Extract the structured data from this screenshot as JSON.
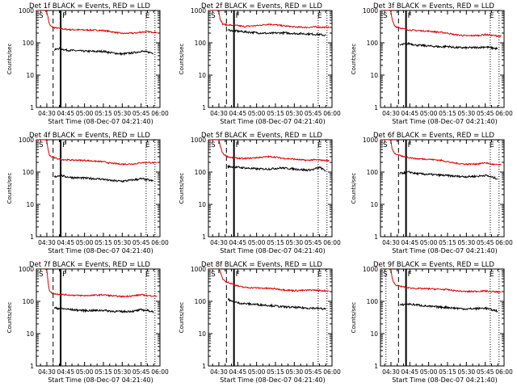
{
  "panel_title_suffix": "BLACK = Events, RED = LLD",
  "xlabel": "Start Time (08-Dec-07 04:21:40)",
  "ylabel": "Counts/sec",
  "x_ticks": [
    "04:30",
    "04:45",
    "05:00",
    "05:15",
    "05:30",
    "05:45",
    "06:00"
  ],
  "y_ticks": [
    "1",
    "10",
    "100",
    "1000"
  ],
  "marker_labels": {
    "start": "S",
    "flare": "F",
    "end": "E"
  },
  "colors": {
    "events": "#000000",
    "lld": "#dd0000"
  },
  "chart_data": [
    {
      "type": "line",
      "title": "Det 1f BLACK = Events, RED = LLD",
      "xlabel": "Start Time (08-Dec-07 04:21:40)",
      "ylabel": "Counts/sec",
      "yscale": "log",
      "ylim": [
        1,
        1000
      ],
      "xlim": [
        "04:21:40",
        "06:00"
      ],
      "markers": {
        "dashed": "04:35",
        "solid": "04:41",
        "dotted": [
          "05:49",
          "05:56"
        ]
      },
      "series": [
        {
          "name": "LLD",
          "color": "#dd0000",
          "x": [
            "04:21:40",
            "04:24",
            "04:27",
            "04:29",
            "04:30",
            "04:31",
            "04:32",
            "04:33",
            "04:35",
            "04:40",
            "04:45",
            "04:50",
            "05:00",
            "05:10",
            "05:15",
            "05:20",
            "05:30",
            "05:40",
            "05:45",
            "05:50",
            "05:58"
          ],
          "values": [
            1000,
            1000,
            1000,
            1000,
            900,
            600,
            380,
            330,
            300,
            280,
            260,
            255,
            250,
            245,
            240,
            225,
            195,
            200,
            215,
            220,
            210
          ]
        },
        {
          "name": "Events",
          "color": "#000000",
          "x": [
            "04:36",
            "04:40",
            "04:45",
            "04:50",
            "05:00",
            "05:10",
            "05:15",
            "05:20",
            "05:30",
            "05:40",
            "05:45",
            "05:50",
            "05:55"
          ],
          "values": [
            60,
            68,
            60,
            58,
            55,
            54,
            55,
            50,
            45,
            50,
            55,
            52,
            48
          ]
        }
      ]
    },
    {
      "type": "line",
      "title": "Det 2f BLACK = Events, RED = LLD",
      "xlabel": "Start Time (08-Dec-07 04:21:40)",
      "ylabel": "Counts/sec",
      "yscale": "log",
      "ylim": [
        1,
        1000
      ],
      "xlim": [
        "04:21:40",
        "06:00"
      ],
      "markers": {
        "dashed": "04:36",
        "solid": "04:42",
        "dotted": [
          "05:49",
          "05:56"
        ]
      },
      "series": [
        {
          "name": "LLD",
          "color": "#dd0000",
          "x": [
            "04:21:40",
            "04:24",
            "04:27",
            "04:29",
            "04:30",
            "04:31",
            "04:33",
            "04:36",
            "04:40",
            "04:45",
            "04:50",
            "05:00",
            "05:10",
            "05:15",
            "05:20",
            "05:30",
            "05:40",
            "05:45",
            "05:50",
            "05:58"
          ],
          "values": [
            1000,
            1000,
            1000,
            1000,
            900,
            550,
            380,
            360,
            350,
            340,
            320,
            340,
            380,
            360,
            340,
            310,
            300,
            310,
            305,
            300
          ]
        },
        {
          "name": "Events",
          "color": "#000000",
          "x": [
            "04:37",
            "04:40",
            "04:45",
            "04:50",
            "05:00",
            "05:10",
            "05:15",
            "05:20",
            "05:30",
            "05:40",
            "05:45",
            "05:50",
            "05:55"
          ],
          "values": [
            250,
            240,
            230,
            220,
            205,
            195,
            200,
            205,
            195,
            190,
            185,
            180,
            170
          ]
        }
      ]
    },
    {
      "type": "line",
      "title": "Det 3f BLACK = Events, RED = LLD",
      "xlabel": "Start Time (08-Dec-07 04:21:40)",
      "ylabel": "Counts/sec",
      "yscale": "log",
      "ylim": [
        1,
        1000
      ],
      "xlim": [
        "04:21:40",
        "06:00"
      ],
      "markers": {
        "dashed": "04:36",
        "solid": "04:42",
        "dotted": [
          "05:49",
          "05:56"
        ]
      },
      "series": [
        {
          "name": "LLD",
          "color": "#dd0000",
          "x": [
            "04:21:40",
            "04:25",
            "04:28",
            "04:30",
            "04:31",
            "04:33",
            "04:36",
            "04:40",
            "04:45",
            "04:50",
            "05:00",
            "05:10",
            "05:15",
            "05:20",
            "05:30",
            "05:40",
            "05:45",
            "05:50",
            "05:58"
          ],
          "values": [
            1000,
            1000,
            1000,
            950,
            500,
            330,
            300,
            270,
            250,
            240,
            230,
            210,
            200,
            180,
            165,
            170,
            180,
            170,
            160
          ]
        },
        {
          "name": "Events",
          "color": "#000000",
          "x": [
            "04:37",
            "04:40",
            "04:45",
            "04:50",
            "05:00",
            "05:10",
            "05:15",
            "05:20",
            "05:30",
            "05:40",
            "05:45",
            "05:50",
            "05:55"
          ],
          "values": [
            85,
            90,
            95,
            85,
            80,
            75,
            78,
            72,
            70,
            72,
            75,
            70,
            65
          ]
        }
      ]
    },
    {
      "type": "line",
      "title": "Det 4f BLACK = Events, RED = LLD",
      "xlabel": "Start Time (08-Dec-07 04:21:40)",
      "ylabel": "Counts/sec",
      "yscale": "log",
      "ylim": [
        1,
        1000
      ],
      "xlim": [
        "04:21:40",
        "06:00"
      ],
      "markers": {
        "dashed": "04:35",
        "solid": "04:41",
        "dotted": [
          "05:49",
          "05:56"
        ]
      },
      "series": [
        {
          "name": "LLD",
          "color": "#dd0000",
          "x": [
            "04:21:40",
            "04:24",
            "04:27",
            "04:29",
            "04:30",
            "04:31",
            "04:32",
            "04:34",
            "04:37",
            "04:40",
            "04:45",
            "04:50",
            "05:00",
            "05:10",
            "05:15",
            "05:20",
            "05:30",
            "05:40",
            "05:45",
            "05:50",
            "05:58"
          ],
          "values": [
            1000,
            1000,
            1000,
            1000,
            900,
            500,
            330,
            290,
            270,
            250,
            240,
            235,
            230,
            215,
            210,
            190,
            175,
            180,
            195,
            200,
            190
          ]
        },
        {
          "name": "Events",
          "color": "#000000",
          "x": [
            "04:36",
            "04:40",
            "04:45",
            "04:50",
            "05:00",
            "05:10",
            "05:15",
            "05:20",
            "05:30",
            "05:40",
            "05:45",
            "05:50",
            "05:55"
          ],
          "values": [
            70,
            80,
            72,
            68,
            65,
            62,
            60,
            55,
            52,
            58,
            62,
            58,
            52
          ]
        }
      ]
    },
    {
      "type": "line",
      "title": "Det 5f BLACK = Events, RED = LLD",
      "xlabel": "Start Time (08-Dec-07 04:21:40)",
      "ylabel": "Counts/sec",
      "yscale": "log",
      "ylim": [
        1,
        1000
      ],
      "xlim": [
        "04:21:40",
        "06:00"
      ],
      "markers": {
        "dashed": "04:36",
        "solid": "04:42",
        "dotted": [
          "05:49",
          "05:56"
        ]
      },
      "series": [
        {
          "name": "LLD",
          "color": "#dd0000",
          "x": [
            "04:21:40",
            "04:24",
            "04:27",
            "04:30",
            "04:31",
            "04:33",
            "04:36",
            "04:40",
            "04:45",
            "04:50",
            "05:00",
            "05:10",
            "05:15",
            "05:20",
            "05:30",
            "05:40",
            "05:45",
            "05:50",
            "05:58"
          ],
          "values": [
            1000,
            1000,
            1000,
            1000,
            650,
            380,
            310,
            280,
            270,
            260,
            280,
            300,
            290,
            270,
            250,
            230,
            240,
            235,
            225
          ]
        },
        {
          "name": "Events",
          "color": "#000000",
          "x": [
            "04:37",
            "04:40",
            "04:45",
            "04:50",
            "05:00",
            "05:10",
            "05:15",
            "05:20",
            "05:30",
            "05:40",
            "05:45",
            "05:50",
            "05:55"
          ],
          "values": [
            150,
            145,
            140,
            135,
            125,
            125,
            130,
            135,
            125,
            115,
            120,
            140,
            110
          ]
        }
      ]
    },
    {
      "type": "line",
      "title": "Det 6f BLACK = Events, RED = LLD",
      "xlabel": "Start Time (08-Dec-07 04:21:40)",
      "ylabel": "Counts/sec",
      "yscale": "log",
      "ylim": [
        1,
        1000
      ],
      "xlim": [
        "04:21:40",
        "06:00"
      ],
      "markers": {
        "dashed": "04:36",
        "solid": "04:42",
        "dotted": [
          "05:49",
          "05:56"
        ]
      },
      "series": [
        {
          "name": "LLD",
          "color": "#dd0000",
          "x": [
            "04:21:40",
            "04:25",
            "04:28",
            "04:30",
            "04:31",
            "04:33",
            "04:36",
            "04:40",
            "04:45",
            "04:50",
            "05:00",
            "05:10",
            "05:15",
            "05:20",
            "05:30",
            "05:40",
            "05:45",
            "05:50",
            "05:58"
          ],
          "values": [
            1000,
            1000,
            1000,
            950,
            500,
            380,
            330,
            300,
            280,
            260,
            250,
            230,
            210,
            190,
            175,
            180,
            195,
            175,
            165
          ]
        },
        {
          "name": "Events",
          "color": "#000000",
          "x": [
            "04:37",
            "04:40",
            "04:45",
            "04:50",
            "05:00",
            "05:10",
            "05:15",
            "05:20",
            "05:30",
            "05:40",
            "05:45",
            "05:50",
            "05:55"
          ],
          "values": [
            90,
            95,
            100,
            90,
            85,
            80,
            78,
            75,
            72,
            75,
            80,
            70,
            62
          ]
        }
      ]
    },
    {
      "type": "line",
      "title": "Det 7f BLACK = Events, RED = LLD",
      "xlabel": "Start Time (08-Dec-07 04:21:40)",
      "ylabel": "Counts/sec",
      "yscale": "log",
      "ylim": [
        1,
        1000
      ],
      "xlim": [
        "04:21:40",
        "06:00"
      ],
      "markers": {
        "dashed": "04:35",
        "solid": "04:41",
        "dotted": [
          "05:49",
          "05:56"
        ]
      },
      "series": [
        {
          "name": "LLD",
          "color": "#dd0000",
          "x": [
            "04:21:40",
            "04:24",
            "04:27",
            "04:29",
            "04:30",
            "04:31",
            "04:32",
            "04:34",
            "04:37",
            "04:40",
            "04:45",
            "04:50",
            "05:00",
            "05:10",
            "05:15",
            "05:20",
            "05:30",
            "05:40",
            "05:45",
            "05:50",
            "05:58"
          ],
          "values": [
            1000,
            1000,
            1000,
            1000,
            900,
            400,
            220,
            180,
            170,
            165,
            160,
            155,
            150,
            155,
            160,
            150,
            140,
            150,
            160,
            150,
            145
          ]
        },
        {
          "name": "Events",
          "color": "#000000",
          "x": [
            "04:36",
            "04:40",
            "04:45",
            "04:50",
            "05:00",
            "05:10",
            "05:15",
            "05:20",
            "05:30",
            "05:40",
            "05:45",
            "05:50",
            "05:55"
          ],
          "values": [
            62,
            60,
            58,
            55,
            52,
            52,
            53,
            50,
            48,
            50,
            55,
            52,
            48
          ]
        }
      ]
    },
    {
      "type": "line",
      "title": "Det 8f BLACK = Events, RED = LLD",
      "xlabel": "Start Time (08-Dec-07 04:21:40)",
      "ylabel": "Counts/sec",
      "yscale": "log",
      "ylim": [
        1,
        1000
      ],
      "xlim": [
        "04:21:40",
        "06:00"
      ],
      "markers": {
        "dashed": "04:36",
        "solid": "04:42",
        "dotted": [
          "05:49",
          "05:56"
        ]
      },
      "series": [
        {
          "name": "LLD",
          "color": "#dd0000",
          "x": [
            "04:21:40",
            "04:24",
            "04:27",
            "04:30",
            "04:31",
            "04:33",
            "04:36",
            "04:40",
            "04:45",
            "04:50",
            "05:00",
            "05:10",
            "05:15",
            "05:20",
            "05:30",
            "05:40",
            "05:45",
            "05:50",
            "05:58"
          ],
          "values": [
            1000,
            1000,
            1000,
            1000,
            800,
            500,
            400,
            350,
            300,
            270,
            260,
            250,
            245,
            230,
            215,
            220,
            225,
            215,
            210
          ]
        },
        {
          "name": "Events",
          "color": "#000000",
          "x": [
            "04:37",
            "04:40",
            "04:45",
            "04:50",
            "05:00",
            "05:10",
            "05:15",
            "05:20",
            "05:30",
            "05:40",
            "05:45",
            "05:50",
            "05:55"
          ],
          "values": [
            120,
            100,
            90,
            85,
            80,
            75,
            72,
            68,
            65,
            62,
            62,
            60,
            58
          ]
        }
      ]
    },
    {
      "type": "line",
      "title": "Det 9f BLACK = Events, RED = LLD",
      "xlabel": "Start Time (08-Dec-07 04:21:40)",
      "ylabel": "Counts/sec",
      "yscale": "log",
      "ylim": [
        1,
        1000
      ],
      "xlim": [
        "04:21:40",
        "06:00"
      ],
      "markers": {
        "dashed": "04:36",
        "solid": "04:42",
        "dotted": [
          "04:26",
          "05:49",
          "05:56"
        ]
      },
      "series": [
        {
          "name": "LLD",
          "color": "#dd0000",
          "x": [
            "04:21:40",
            "04:25",
            "04:28",
            "04:30",
            "04:31",
            "04:33",
            "04:36",
            "04:40",
            "04:45",
            "04:50",
            "05:00",
            "05:10",
            "05:15",
            "05:20",
            "05:30",
            "05:40",
            "05:45",
            "05:50",
            "05:58"
          ],
          "values": [
            1000,
            1000,
            1000,
            950,
            500,
            340,
            300,
            280,
            260,
            250,
            245,
            235,
            230,
            215,
            200,
            205,
            210,
            200,
            195
          ]
        },
        {
          "name": "Events",
          "color": "#000000",
          "x": [
            "04:37",
            "04:40",
            "04:45",
            "04:50",
            "05:00",
            "05:10",
            "05:15",
            "05:20",
            "05:30",
            "05:40",
            "05:45",
            "05:50",
            "05:55"
          ],
          "values": [
            75,
            80,
            82,
            78,
            70,
            66,
            65,
            62,
            58,
            60,
            62,
            55,
            50
          ]
        }
      ]
    }
  ]
}
